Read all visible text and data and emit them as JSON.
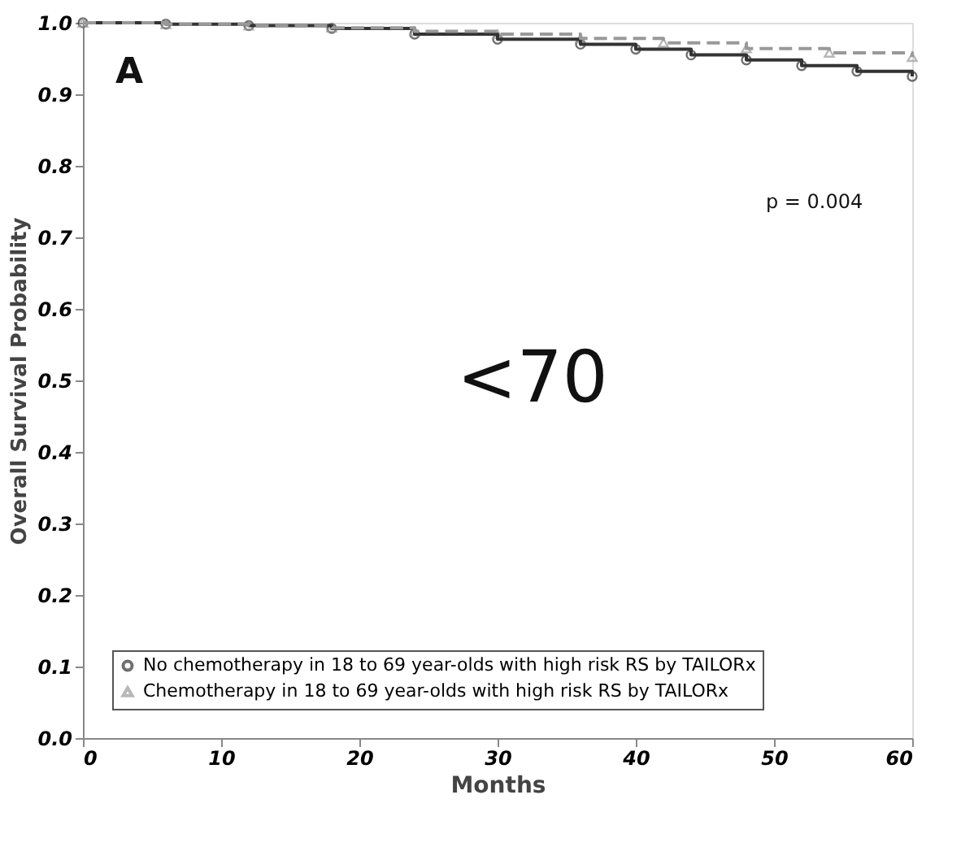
{
  "chart_data": {
    "type": "step",
    "xlabel": "Months",
    "ylabel": "Overall Survival Probability",
    "annotations": [
      "A",
      "p = 0.004",
      "<70"
    ],
    "x": [
      0,
      6,
      12,
      18,
      24,
      30,
      36,
      40,
      44,
      48,
      52,
      56,
      60
    ],
    "series": [
      {
        "name": "No chemotherapy in 18 to 69 year-olds with high risk RS by TAILORx",
        "color": "#333333",
        "marker": "circle",
        "line_style": "solid",
        "values": [
          1.0,
          0.998,
          0.996,
          0.992,
          0.984,
          0.977,
          0.97,
          0.963,
          0.955,
          0.948,
          0.94,
          0.932,
          0.925
        ]
      },
      {
        "name": "Chemotherapy in 18 to 69 year-olds with high risk RS by TAILORx",
        "color": "#999999",
        "marker": "triangle",
        "line_style": "dashed",
        "x": [
          0,
          6,
          12,
          18,
          24,
          30,
          36,
          42,
          48,
          54,
          60
        ],
        "values": [
          1.0,
          0.998,
          0.996,
          0.993,
          0.988,
          0.984,
          0.978,
          0.972,
          0.964,
          0.958,
          0.952
        ]
      }
    ],
    "xlim": [
      0,
      60
    ],
    "xticks": [
      0,
      10,
      20,
      30,
      40,
      50,
      60
    ],
    "ylim": [
      0,
      1
    ],
    "yticks": [
      {
        "value": 0,
        "label": "0.0"
      },
      0.1,
      0.2,
      0.3,
      0.4,
      0.5,
      0.6,
      0.7,
      0.8,
      0.9,
      {
        "value": 1,
        "label": "1.0"
      }
    ],
    "grid": false,
    "legend": "bottom left"
  }
}
